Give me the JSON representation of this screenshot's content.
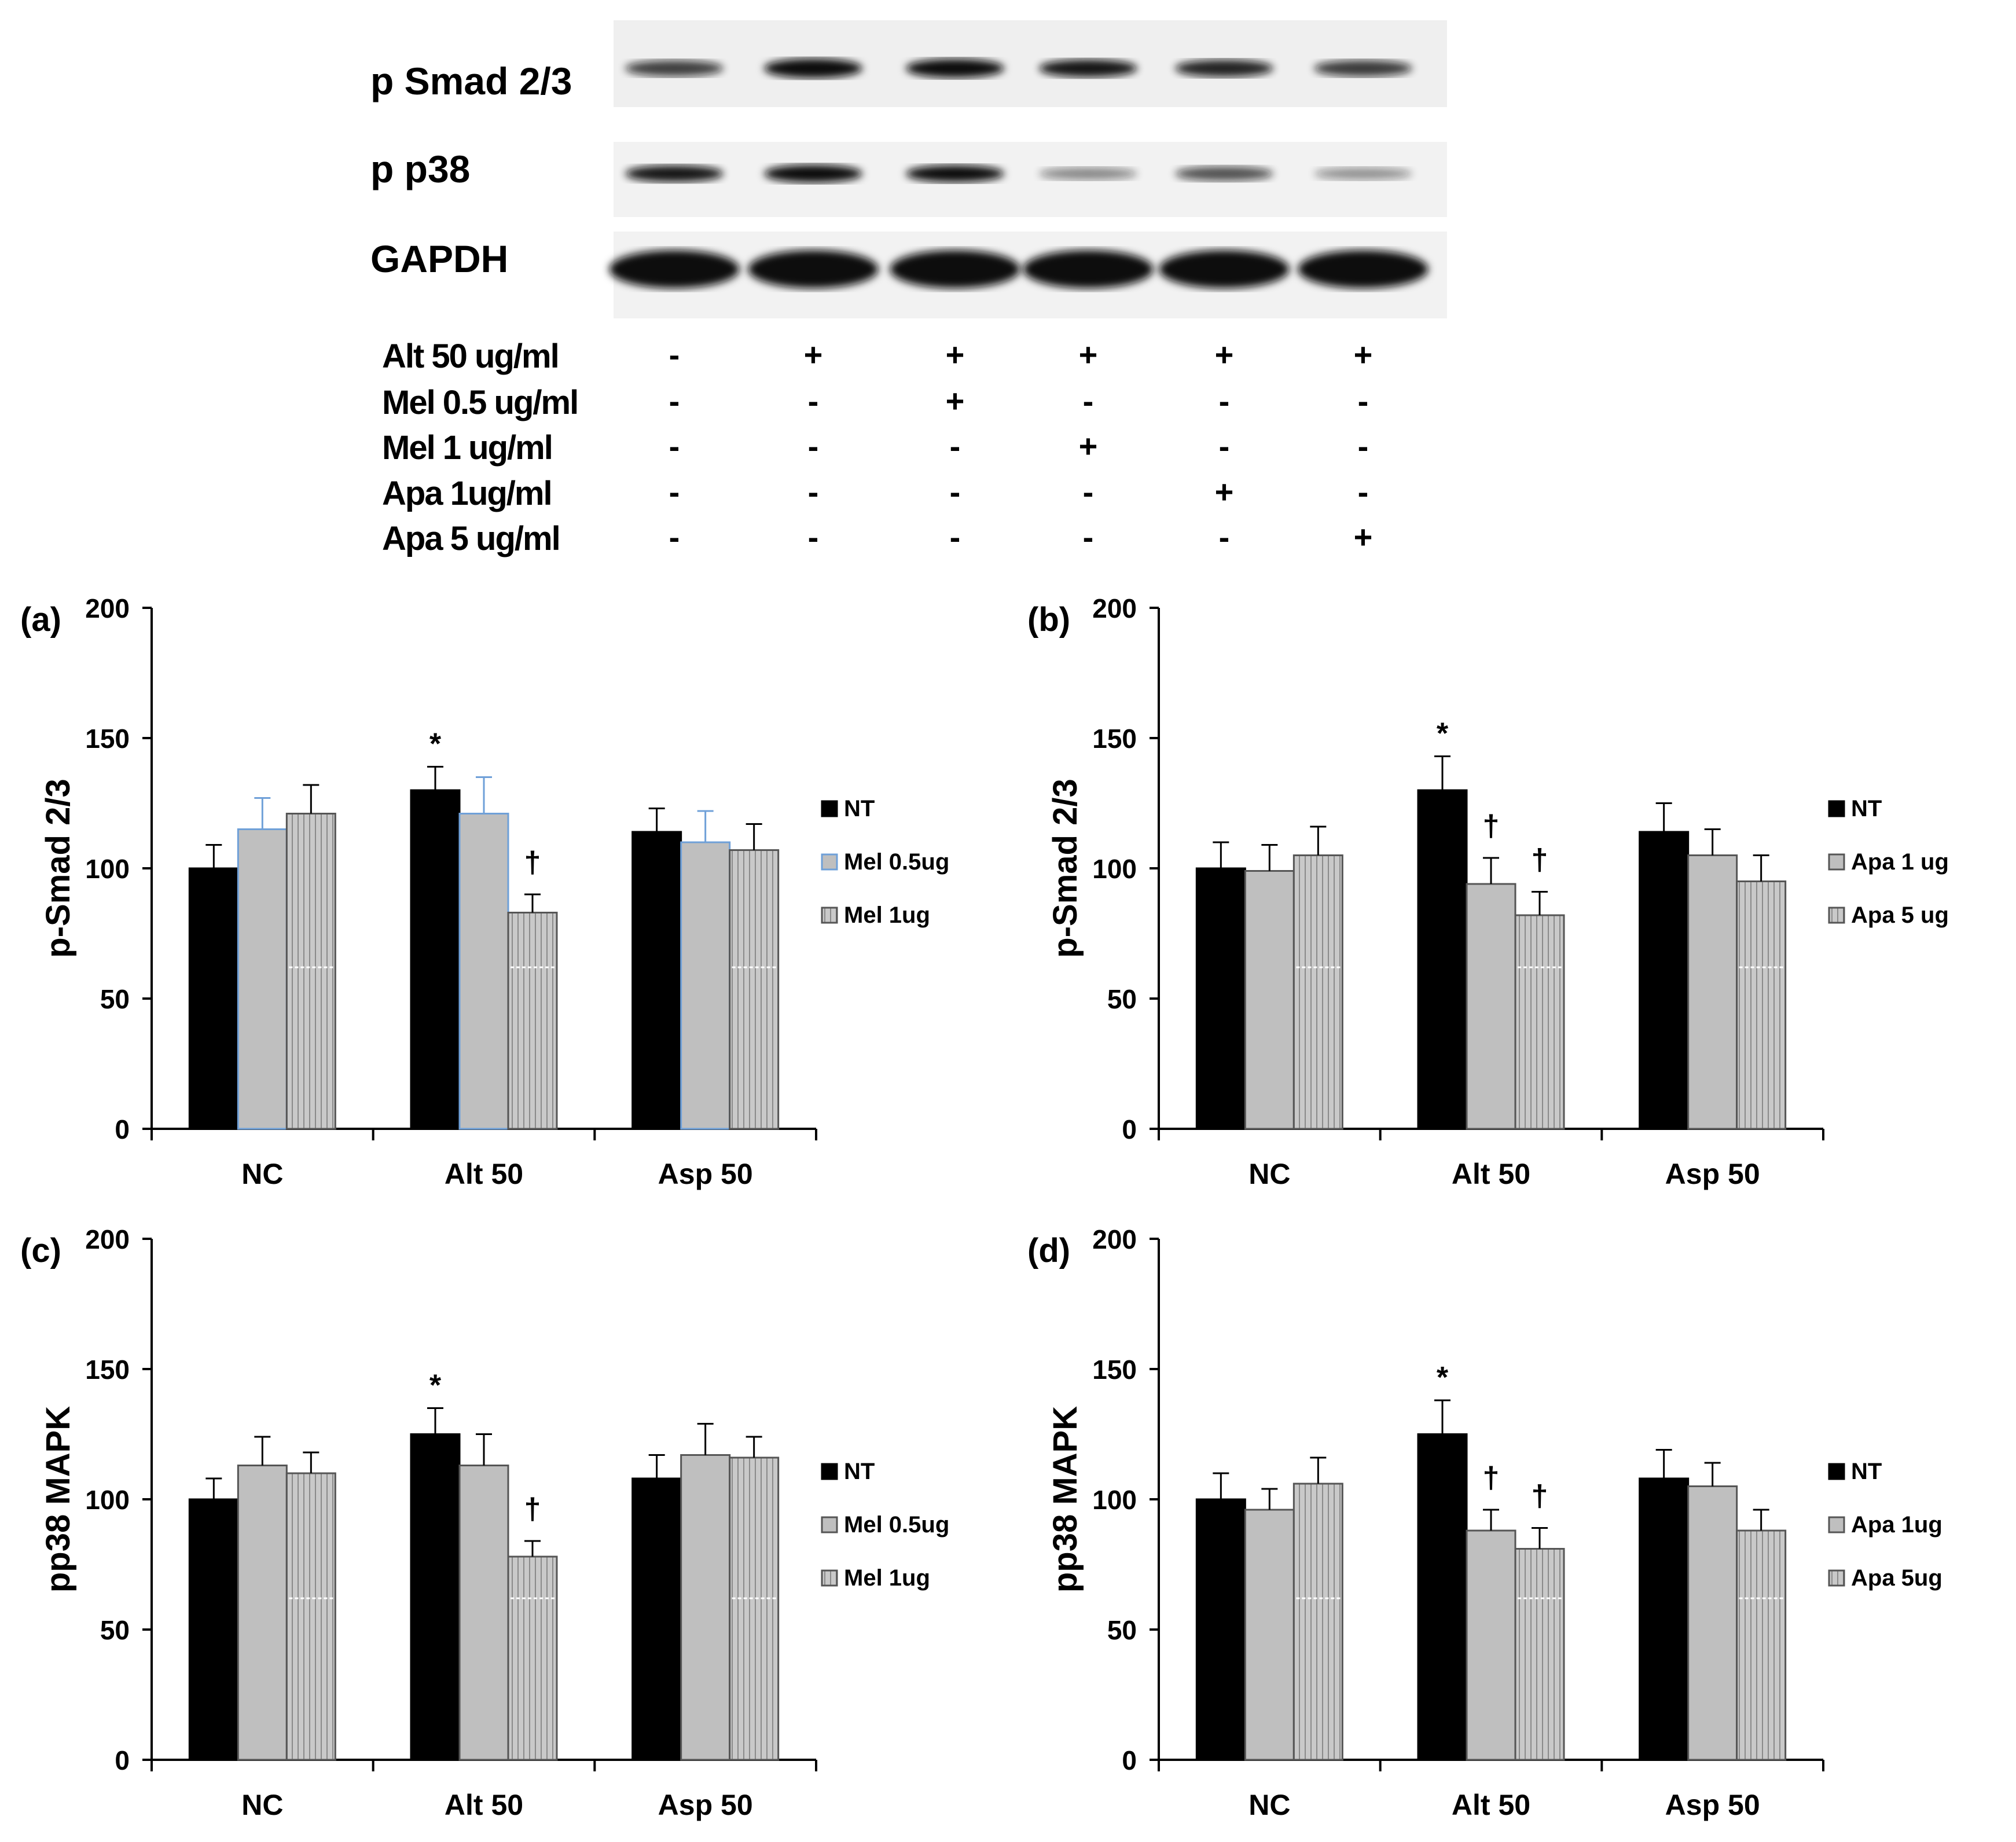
{
  "blot": {
    "protein_labels": [
      "p Smad 2/3",
      "p p38",
      "GAPDH"
    ],
    "treatment_rows": [
      {
        "label": "Alt 50 ug/ml",
        "marks": [
          "-",
          "+",
          "+",
          "+",
          "+",
          "+"
        ]
      },
      {
        "label": "Mel 0.5 ug/ml",
        "marks": [
          "-",
          "-",
          "+",
          "-",
          "-",
          "-"
        ]
      },
      {
        "label": "Mel 1 ug/ml",
        "marks": [
          "-",
          "-",
          "-",
          "+",
          "-",
          "-"
        ]
      },
      {
        "label": "Apa 1ug/ml",
        "marks": [
          "-",
          "-",
          "-",
          "-",
          "+",
          "-"
        ]
      },
      {
        "label": "Apa 5 ug/ml",
        "marks": [
          "-",
          "-",
          "-",
          "-",
          "-",
          "+"
        ]
      }
    ],
    "band_intensity": {
      "p_smad": [
        0.6,
        1.0,
        0.92,
        0.78,
        0.72,
        0.62
      ],
      "p_p38": [
        0.78,
        0.92,
        0.82,
        0.28,
        0.52,
        0.24
      ],
      "gapdh": [
        1.0,
        1.0,
        1.0,
        1.0,
        1.0,
        1.0
      ]
    },
    "colors": {
      "band": "#111111",
      "background": "#f1f1f1"
    }
  },
  "chart_data": [
    {
      "panel_label": "(a)",
      "type": "bar",
      "ylabel": "p-Smad 2/3",
      "ylim": [
        0,
        200
      ],
      "yticks": [
        0,
        50,
        100,
        150,
        200
      ],
      "categories": [
        "NC",
        "Alt 50",
        "Asp 50"
      ],
      "series": [
        {
          "name": "NT",
          "values": [
            100,
            130,
            114
          ],
          "errors": [
            9,
            9,
            9
          ],
          "color": "#000000"
        },
        {
          "name": "Mel 0.5ug",
          "values": [
            115,
            121,
            110
          ],
          "errors": [
            12,
            14,
            12
          ],
          "color": "#bfbfbf",
          "outline": "#6fa0d8"
        },
        {
          "name": "Mel 1ug",
          "values": [
            121,
            83,
            107
          ],
          "errors": [
            11,
            7,
            10
          ],
          "color": "#c8c8c8",
          "hatched": true
        }
      ],
      "annotations": [
        {
          "text": "*",
          "category": "Alt 50",
          "series": 0
        },
        {
          "text": "†",
          "category": "Alt 50",
          "series": 2
        }
      ]
    },
    {
      "panel_label": "(b)",
      "type": "bar",
      "ylabel": "p-Smad 2/3",
      "ylim": [
        0,
        200
      ],
      "yticks": [
        0,
        50,
        100,
        150,
        200
      ],
      "categories": [
        "NC",
        "Alt 50",
        "Asp 50"
      ],
      "series": [
        {
          "name": "NT",
          "values": [
            100,
            130,
            114
          ],
          "errors": [
            10,
            13,
            11
          ],
          "color": "#000000"
        },
        {
          "name": "Apa 1 ug",
          "values": [
            99,
            94,
            105
          ],
          "errors": [
            10,
            10,
            10
          ],
          "color": "#bfbfbf"
        },
        {
          "name": "Apa 5 ug",
          "values": [
            105,
            82,
            95
          ],
          "errors": [
            11,
            9,
            10
          ],
          "color": "#c8c8c8",
          "hatched": true
        }
      ],
      "annotations": [
        {
          "text": "*",
          "category": "Alt 50",
          "series": 0
        },
        {
          "text": "†",
          "category": "Alt 50",
          "series": 1
        },
        {
          "text": "†",
          "category": "Alt 50",
          "series": 2
        }
      ]
    },
    {
      "panel_label": "(c)",
      "type": "bar",
      "ylabel": "pp38 MAPK",
      "ylim": [
        0,
        200
      ],
      "yticks": [
        0,
        50,
        100,
        150,
        200
      ],
      "categories": [
        "NC",
        "Alt 50",
        "Asp 50"
      ],
      "series": [
        {
          "name": "NT",
          "values": [
            100,
            125,
            108
          ],
          "errors": [
            8,
            10,
            9
          ],
          "color": "#000000"
        },
        {
          "name": "Mel 0.5ug",
          "values": [
            113,
            113,
            117
          ],
          "errors": [
            11,
            12,
            12
          ],
          "color": "#bfbfbf"
        },
        {
          "name": "Mel 1ug",
          "values": [
            110,
            78,
            116
          ],
          "errors": [
            8,
            6,
            8
          ],
          "color": "#c8c8c8",
          "hatched": true
        }
      ],
      "annotations": [
        {
          "text": "*",
          "category": "Alt 50",
          "series": 0
        },
        {
          "text": "†",
          "category": "Alt 50",
          "series": 2
        }
      ]
    },
    {
      "panel_label": "(d)",
      "type": "bar",
      "ylabel": "pp38 MAPK",
      "ylim": [
        0,
        200
      ],
      "yticks": [
        0,
        50,
        100,
        150,
        200
      ],
      "categories": [
        "NC",
        "Alt 50",
        "Asp 50"
      ],
      "series": [
        {
          "name": "NT",
          "values": [
            100,
            125,
            108
          ],
          "errors": [
            10,
            13,
            11
          ],
          "color": "#000000"
        },
        {
          "name": "Apa 1ug",
          "values": [
            96,
            88,
            105
          ],
          "errors": [
            8,
            8,
            9
          ],
          "color": "#bfbfbf"
        },
        {
          "name": "Apa 5ug",
          "values": [
            106,
            81,
            88
          ],
          "errors": [
            10,
            8,
            8
          ],
          "color": "#c8c8c8",
          "hatched": true
        }
      ],
      "annotations": [
        {
          "text": "*",
          "category": "Alt 50",
          "series": 0
        },
        {
          "text": "†",
          "category": "Alt 50",
          "series": 1
        },
        {
          "text": "†",
          "category": "Alt 50",
          "series": 2
        }
      ]
    }
  ]
}
